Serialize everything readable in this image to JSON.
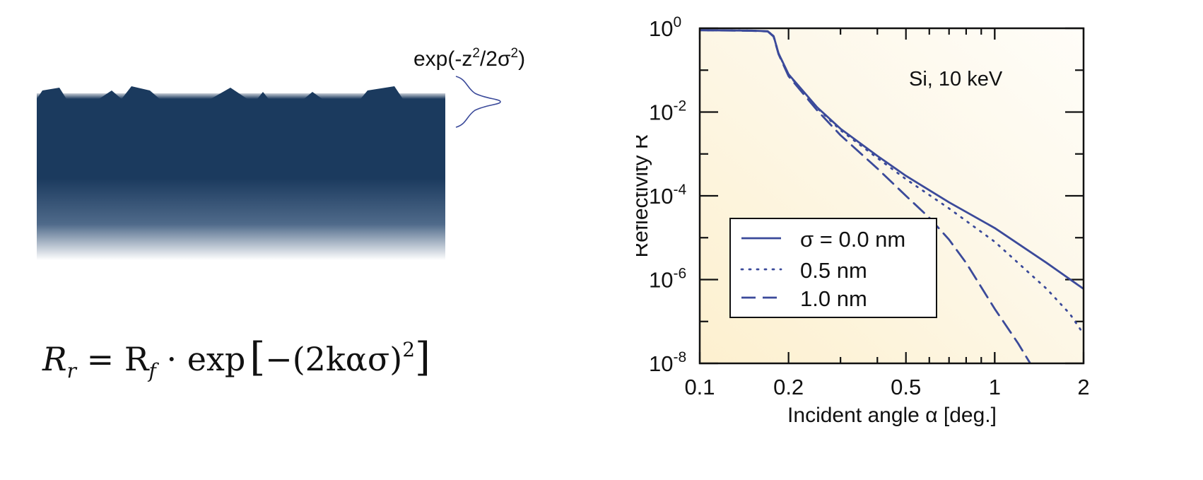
{
  "illustration": {
    "gaussian_label_parts": [
      "exp(-z",
      "2",
      "/2σ",
      "2",
      ")"
    ],
    "colors": {
      "substrate": "#1b3a5e",
      "gaussian": "#3b4a9a"
    }
  },
  "formula": {
    "parts": [
      "R",
      "r",
      " = R",
      "f",
      " · exp",
      "[",
      "−(2kασ)",
      "2",
      "]"
    ]
  },
  "chart_data": {
    "type": "line",
    "annotation": "Si, 10 keV",
    "xlabel": "Incident angle α [deg.]",
    "ylabel": "Reflectivity R",
    "xscale": "log",
    "yscale": "log",
    "xlim": [
      0.1,
      2
    ],
    "ylim": [
      1e-08,
      1
    ],
    "x_ticks": [
      {
        "value": 0.1,
        "label": "0.1"
      },
      {
        "value": 0.2,
        "label": "0.2"
      },
      {
        "value": 0.5,
        "label": "0.5"
      },
      {
        "value": 1,
        "label": "1"
      },
      {
        "value": 2,
        "label": "2"
      }
    ],
    "y_ticks": [
      {
        "value": 1,
        "base": "10",
        "exp": "0"
      },
      {
        "value": 0.01,
        "base": "10",
        "exp": "-2"
      },
      {
        "value": 0.0001,
        "base": "10",
        "exp": "-4"
      },
      {
        "value": 1e-06,
        "base": "10",
        "exp": "-6"
      },
      {
        "value": 1e-08,
        "base": "10",
        "exp": "-8"
      }
    ],
    "legend_position": "lower-left",
    "color": "#3b4a9a",
    "series": [
      {
        "name": "σ = 0.0 nm",
        "style": "solid",
        "points": [
          [
            0.1,
            0.9
          ],
          [
            0.15,
            0.88
          ],
          [
            0.17,
            0.85
          ],
          [
            0.178,
            0.65
          ],
          [
            0.185,
            0.25
          ],
          [
            0.2,
            0.08
          ],
          [
            0.25,
            0.013
          ],
          [
            0.3,
            0.004
          ],
          [
            0.4,
            0.0009
          ],
          [
            0.5,
            0.0003
          ],
          [
            0.7,
            7e-05
          ],
          [
            1.0,
            1.7e-05
          ],
          [
            1.5,
            2.5e-06
          ],
          [
            2.0,
            6e-07
          ]
        ]
      },
      {
        "name": "0.5 nm",
        "style": "dotted",
        "points": [
          [
            0.1,
            0.9
          ],
          [
            0.15,
            0.88
          ],
          [
            0.17,
            0.85
          ],
          [
            0.178,
            0.65
          ],
          [
            0.185,
            0.25
          ],
          [
            0.2,
            0.078
          ],
          [
            0.25,
            0.0125
          ],
          [
            0.3,
            0.0037
          ],
          [
            0.4,
            0.0008
          ],
          [
            0.5,
            0.00025
          ],
          [
            0.7,
            5e-05
          ],
          [
            1.0,
            8e-06
          ],
          [
            1.5,
            6e-07
          ],
          [
            1.8,
            1.5e-07
          ],
          [
            2.0,
            5e-08
          ]
        ]
      },
      {
        "name": "1.0 nm",
        "style": "dashed",
        "points": [
          [
            0.1,
            0.9
          ],
          [
            0.15,
            0.87
          ],
          [
            0.17,
            0.84
          ],
          [
            0.178,
            0.63
          ],
          [
            0.185,
            0.24
          ],
          [
            0.2,
            0.072
          ],
          [
            0.25,
            0.011
          ],
          [
            0.3,
            0.0028
          ],
          [
            0.4,
            0.00045
          ],
          [
            0.5,
            0.0001
          ],
          [
            0.6,
            3e-05
          ],
          [
            0.7,
            9e-06
          ],
          [
            0.8,
            2.5e-06
          ],
          [
            1.0,
            2e-07
          ],
          [
            1.2,
            3e-08
          ],
          [
            1.4,
            5e-09
          ]
        ]
      }
    ]
  }
}
